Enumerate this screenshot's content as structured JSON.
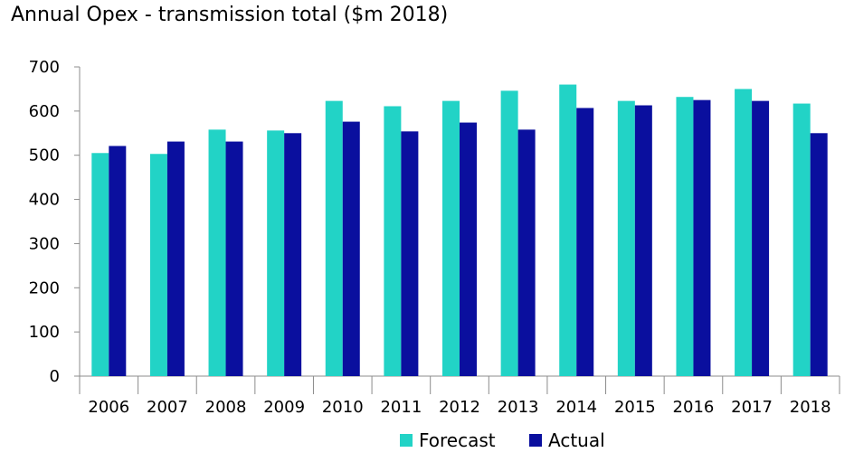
{
  "chart_data": {
    "type": "bar",
    "title": "Annual Opex - transmission total ($m 2018)",
    "xlabel": "",
    "ylabel": "",
    "categories": [
      "2006",
      "2007",
      "2008",
      "2009",
      "2010",
      "2011",
      "2012",
      "2013",
      "2014",
      "2015",
      "2016",
      "2017",
      "2018"
    ],
    "series": [
      {
        "name": "Forecast",
        "color": "#22D3C6",
        "values": [
          505,
          503,
          558,
          556,
          623,
          611,
          623,
          646,
          660,
          623,
          632,
          650,
          617
        ]
      },
      {
        "name": "Actual",
        "color": "#0A0F9E",
        "values": [
          521,
          531,
          531,
          550,
          576,
          554,
          574,
          558,
          607,
          613,
          625,
          623,
          550
        ]
      }
    ],
    "ylim": [
      0,
      700
    ],
    "yticks": [
      0,
      100,
      200,
      300,
      400,
      500,
      600,
      700
    ],
    "grid": false,
    "legend": "bottom"
  }
}
